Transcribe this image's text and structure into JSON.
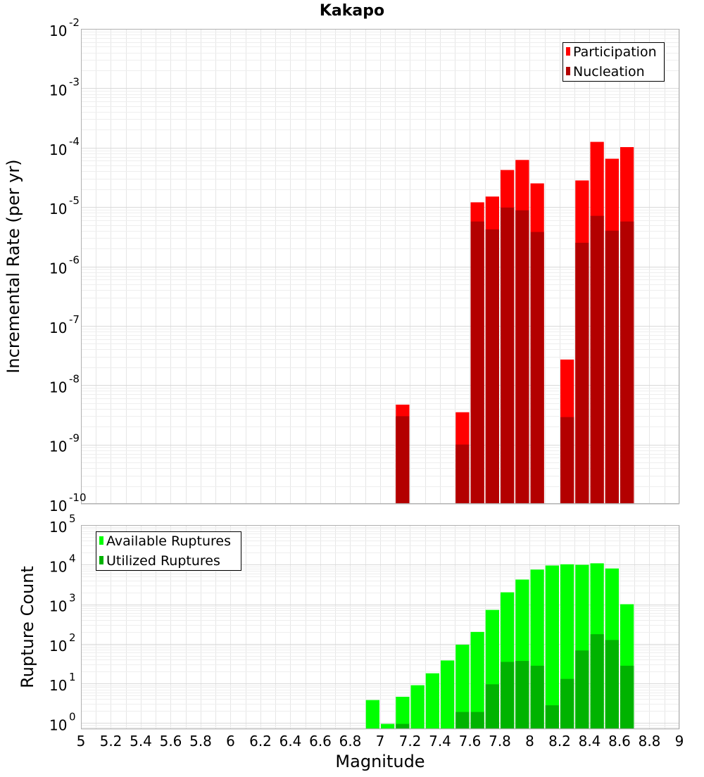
{
  "chart_data": [
    {
      "type": "bar",
      "title": "Kakapo",
      "xlabel": "",
      "ylabel": "Incremental Rate (per yr)",
      "yscale": "log",
      "xlim": [
        5,
        9
      ],
      "ylim": [
        1e-10,
        0.01
      ],
      "ytick_exponents": [
        "-10",
        "-9",
        "-8",
        "-7",
        "-6",
        "-5",
        "-4",
        "-3",
        "-2"
      ],
      "grid": true,
      "legend": {
        "position": "top-right",
        "entries": [
          "Participation",
          "Nucleation"
        ]
      },
      "colors": {
        "Participation": "#ff0000",
        "Nucleation": "#b30000"
      },
      "bin_width": 0.1,
      "series": [
        {
          "name": "Participation",
          "x": [
            7.15,
            7.55,
            7.65,
            7.75,
            7.85,
            7.95,
            8.05,
            8.25,
            8.35,
            8.45,
            8.55,
            8.65
          ],
          "values": [
            4.7e-09,
            3.5e-09,
            1.2e-05,
            1.5e-05,
            4.2e-05,
            6.2e-05,
            2.5e-05,
            2.7e-08,
            2.8e-05,
            0.000125,
            6.5e-05,
            0.000102
          ]
        },
        {
          "name": "Nucleation",
          "x": [
            7.15,
            7.55,
            7.65,
            7.75,
            7.85,
            7.95,
            8.05,
            8.25,
            8.35,
            8.45,
            8.55,
            8.65
          ],
          "values": [
            3e-09,
            1e-09,
            5.7e-06,
            4.2e-06,
            9.8e-06,
            8.8e-06,
            3.8e-06,
            2.9e-09,
            2.5e-06,
            7.1e-06,
            4e-06,
            5.7e-06
          ]
        }
      ]
    },
    {
      "type": "bar",
      "title": "",
      "xlabel": "Magnitude",
      "ylabel": "Rupture Count",
      "yscale": "log",
      "xlim": [
        5,
        9
      ],
      "ylim": [
        0.7,
        100000.0
      ],
      "ytick_exponents": [
        "0",
        "1",
        "2",
        "3",
        "4",
        "5"
      ],
      "xticks": [
        "5",
        "5.2",
        "5.4",
        "5.6",
        "5.8",
        "6",
        "6.2",
        "6.4",
        "6.6",
        "6.8",
        "7",
        "7.2",
        "7.4",
        "7.6",
        "7.8",
        "8",
        "8.2",
        "8.4",
        "8.6",
        "8.8",
        "9"
      ],
      "grid": true,
      "legend": {
        "position": "top-left",
        "entries": [
          "Available Ruptures",
          "Utilized Ruptures"
        ]
      },
      "colors": {
        "Available Ruptures": "#00ff00",
        "Utilized Ruptures": "#00b300"
      },
      "bin_width": 0.1,
      "series": [
        {
          "name": "Available Ruptures",
          "x": [
            6.95,
            7.05,
            7.15,
            7.25,
            7.35,
            7.45,
            7.55,
            7.65,
            7.75,
            7.85,
            7.95,
            8.05,
            8.15,
            8.25,
            8.35,
            8.45,
            8.55,
            8.65
          ],
          "values": [
            3.8,
            0.95,
            4.6,
            9.0,
            18,
            38,
            95,
            200,
            720,
            2000,
            4200,
            7500,
            9500,
            10200,
            9900,
            10800,
            8000,
            1000
          ]
        },
        {
          "name": "Utilized Ruptures",
          "x": [
            7.15,
            7.55,
            7.65,
            7.75,
            7.85,
            7.95,
            8.05,
            8.15,
            8.25,
            8.35,
            8.45,
            8.55,
            8.65
          ],
          "values": [
            0.95,
            1.9,
            1.9,
            9.5,
            35,
            37,
            28,
            2.8,
            13,
            68,
            175,
            125,
            28
          ]
        }
      ]
    }
  ]
}
